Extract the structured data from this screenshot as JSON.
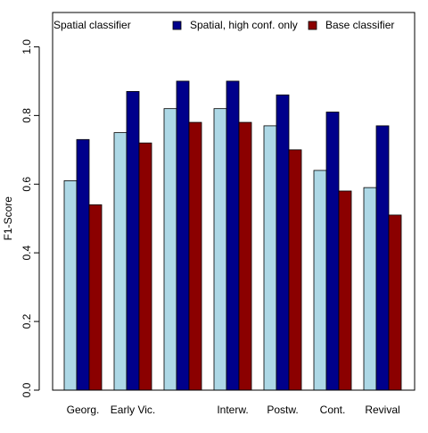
{
  "chart_data": {
    "type": "bar",
    "categories": [
      "Georg.",
      "Early Vic.",
      "",
      "Interw.",
      "Postw.",
      "Cont.",
      "Revival"
    ],
    "series": [
      {
        "name": "Spatial classifier",
        "color": "#add8e6",
        "values": [
          0.61,
          0.75,
          0.82,
          0.82,
          0.77,
          0.64,
          0.59
        ]
      },
      {
        "name": "Spatial, high conf. only",
        "color": "#00008b",
        "values": [
          0.73,
          0.87,
          0.9,
          0.9,
          0.86,
          0.81,
          0.77
        ]
      },
      {
        "name": "Base classifier",
        "color": "#8b0000",
        "values": [
          0.54,
          0.72,
          0.78,
          0.78,
          0.7,
          0.58,
          0.51
        ]
      }
    ],
    "ylabel": "F1-Score",
    "ylim": [
      0,
      1.1
    ],
    "yticks": [
      "0.0",
      "0.2",
      "0.4",
      "0.6",
      "0.8",
      "1.0"
    ],
    "grid": false,
    "legend_position": "top"
  }
}
